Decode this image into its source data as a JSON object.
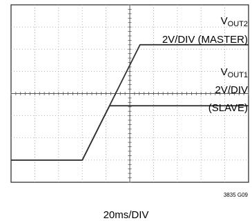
{
  "chart_data": {
    "type": "line",
    "title": "",
    "xlabel": "20ms/DIV",
    "ylabel": "",
    "x_unit": "ms",
    "x_per_div_ms": 20,
    "y_per_div_V": 2,
    "x_divisions": 10,
    "y_divisions": 8,
    "xlim_div": [
      0,
      10
    ],
    "ylim_div": [
      0,
      8
    ],
    "grid": true,
    "series": [
      {
        "name": "VOUT2 2V/DIV (MASTER)",
        "points_div": [
          [
            0,
            1.0
          ],
          [
            3.0,
            1.0
          ],
          [
            5.43,
            6.2
          ],
          [
            10,
            6.2
          ]
        ]
      },
      {
        "name": "VOUT1 2V/DIV (SLAVE)",
        "points_div": [
          [
            0,
            1.0
          ],
          [
            3.0,
            1.0
          ],
          [
            3.83,
            2.78
          ],
          [
            4.15,
            3.45
          ],
          [
            10,
            3.45
          ]
        ]
      }
    ],
    "labels": {
      "vout2_main": "V",
      "vout2_sub": "OUT2",
      "vout2_scale": "2V/DIV (MASTER)",
      "vout1_main": "V",
      "vout1_sub": "OUT1",
      "vout1_scale": "2V/DIV",
      "vout1_role": "(SLAVE)"
    },
    "figure_id": "3835 G09"
  }
}
